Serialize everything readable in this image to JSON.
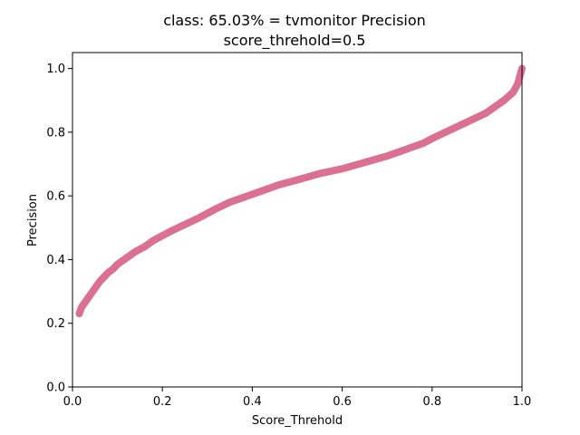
{
  "chart_data": {
    "type": "scatter",
    "title": "class: 65.03% = tvmonitor Precision",
    "subtitle": "score_threhold=0.5",
    "xlabel": "Score_Threhold",
    "ylabel": "Precision",
    "xlim": [
      0.0,
      1.0
    ],
    "ylim": [
      0.0,
      1.05
    ],
    "x_ticks": [
      "0.0",
      "0.2",
      "0.4",
      "0.6",
      "0.8",
      "1.0"
    ],
    "y_ticks": [
      "0.0",
      "0.2",
      "0.4",
      "0.6",
      "0.8",
      "1.0"
    ],
    "grid": false,
    "series": [
      {
        "color": "#db7093",
        "points": [
          [
            0.015,
            0.23
          ],
          [
            0.02,
            0.25
          ],
          [
            0.03,
            0.27
          ],
          [
            0.04,
            0.29
          ],
          [
            0.05,
            0.31
          ],
          [
            0.06,
            0.33
          ],
          [
            0.07,
            0.345
          ],
          [
            0.08,
            0.36
          ],
          [
            0.09,
            0.37
          ],
          [
            0.1,
            0.385
          ],
          [
            0.12,
            0.405
          ],
          [
            0.14,
            0.425
          ],
          [
            0.16,
            0.44
          ],
          [
            0.18,
            0.46
          ],
          [
            0.2,
            0.475
          ],
          [
            0.22,
            0.49
          ],
          [
            0.25,
            0.51
          ],
          [
            0.28,
            0.53
          ],
          [
            0.3,
            0.545
          ],
          [
            0.32,
            0.56
          ],
          [
            0.35,
            0.58
          ],
          [
            0.38,
            0.595
          ],
          [
            0.4,
            0.605
          ],
          [
            0.43,
            0.62
          ],
          [
            0.46,
            0.635
          ],
          [
            0.5,
            0.65
          ],
          [
            0.55,
            0.67
          ],
          [
            0.6,
            0.685
          ],
          [
            0.65,
            0.705
          ],
          [
            0.7,
            0.725
          ],
          [
            0.75,
            0.75
          ],
          [
            0.78,
            0.765
          ],
          [
            0.8,
            0.78
          ],
          [
            0.83,
            0.8
          ],
          [
            0.86,
            0.82
          ],
          [
            0.89,
            0.84
          ],
          [
            0.92,
            0.86
          ],
          [
            0.94,
            0.88
          ],
          [
            0.96,
            0.9
          ],
          [
            0.98,
            0.925
          ],
          [
            0.99,
            0.95
          ],
          [
            0.995,
            0.975
          ],
          [
            1.0,
            1.0
          ]
        ]
      }
    ]
  }
}
